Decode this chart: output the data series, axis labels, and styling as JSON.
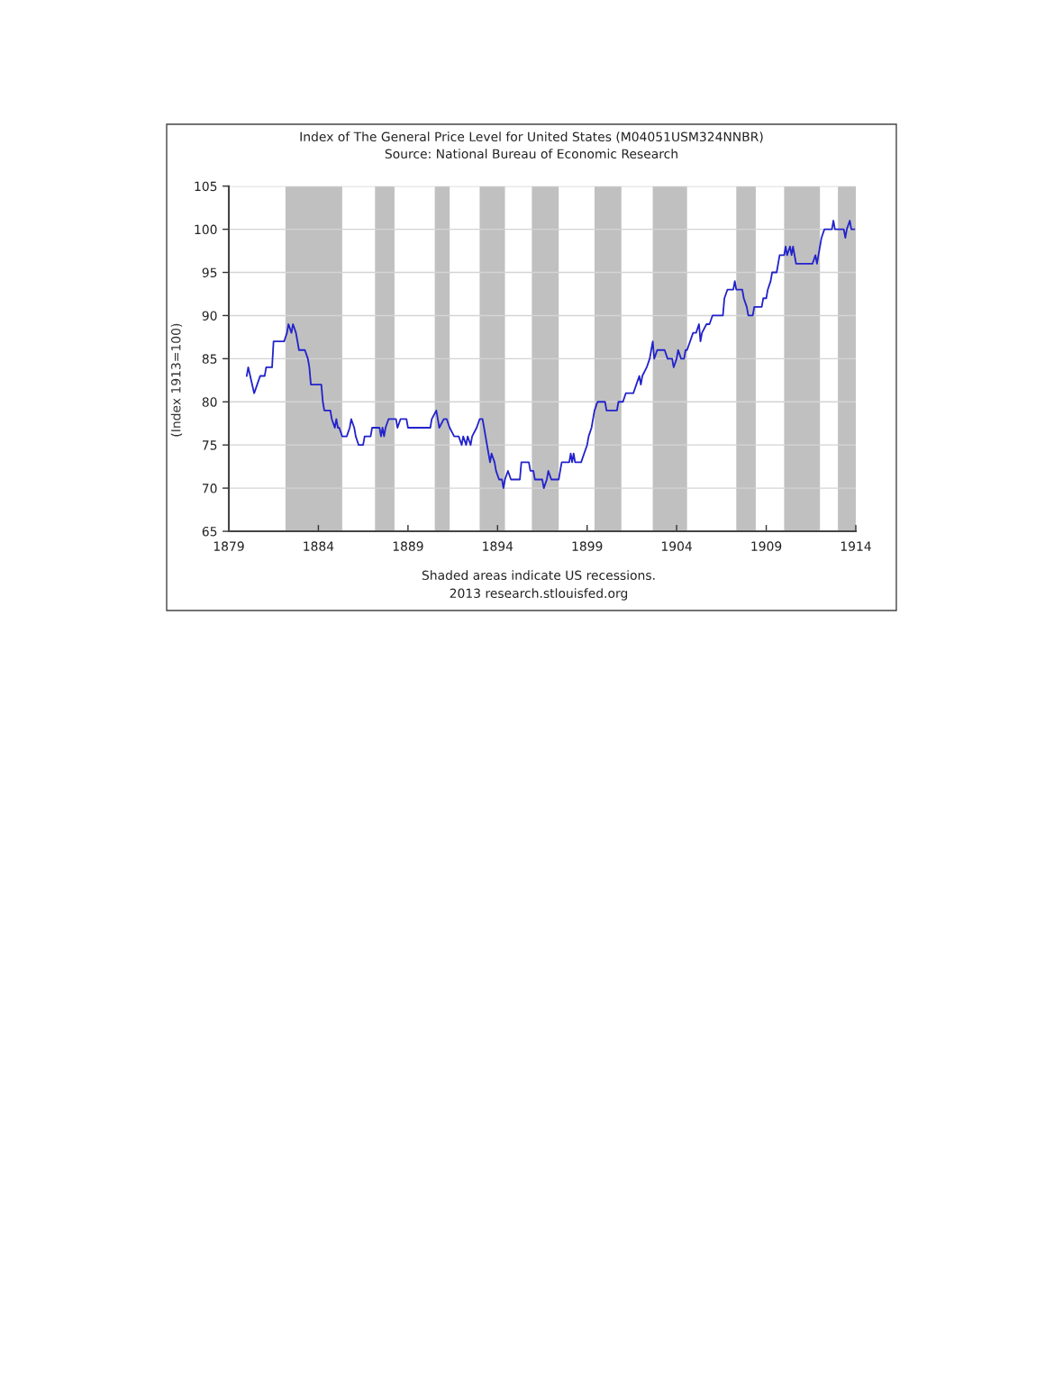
{
  "chart_data": {
    "type": "line",
    "title": "Index of The General Price Level for United States (M04051USM324NNBR)",
    "subtitle": "Source: National Bureau of Economic Research",
    "ylabel": "(Index 1913=100)",
    "annotations": [
      "Shaded areas indicate US recessions.",
      "2013 research.stlouisfed.org"
    ],
    "series": [
      {
        "color": "#2222cc",
        "x": [
          "1880-01",
          "1880-02",
          "1880-06",
          "1880-08",
          "1880-10",
          "1881-01",
          "1881-02",
          "1881-06",
          "1881-07",
          "1882-02",
          "1882-04",
          "1882-05",
          "1882-07",
          "1882-08",
          "1882-10",
          "1882-11",
          "1882-12",
          "1883-04",
          "1883-06",
          "1883-07",
          "1883-08",
          "1884-03",
          "1884-04",
          "1884-05",
          "1884-09",
          "1884-10",
          "1884-12",
          "1885-01",
          "1885-02",
          "1885-03",
          "1885-05",
          "1885-08",
          "1885-10",
          "1885-11",
          "1886-01",
          "1886-02",
          "1886-04",
          "1886-07",
          "1886-08",
          "1886-12",
          "1887-01",
          "1887-06",
          "1887-07",
          "1887-08",
          "1887-09",
          "1887-10",
          "1887-12",
          "1888-05",
          "1888-06",
          "1888-08",
          "1888-12",
          "1889-01",
          "1890-04",
          "1890-05",
          "1890-08",
          "1890-09",
          "1890-10",
          "1891-01",
          "1891-03",
          "1891-05",
          "1891-08",
          "1891-11",
          "1892-01",
          "1892-02",
          "1892-04",
          "1892-05",
          "1892-07",
          "1892-08",
          "1892-11",
          "1893-01",
          "1893-03",
          "1893-04",
          "1893-05",
          "1893-07",
          "1893-08",
          "1893-09",
          "1893-11",
          "1893-12",
          "1894-02",
          "1894-04",
          "1894-05",
          "1894-06",
          "1894-08",
          "1894-10",
          "1895-04",
          "1895-05",
          "1895-10",
          "1895-11",
          "1896-01",
          "1896-02",
          "1896-07",
          "1896-08",
          "1896-10",
          "1896-11",
          "1897-01",
          "1897-06",
          "1897-07",
          "1897-08",
          "1898-01",
          "1898-02",
          "1898-03",
          "1898-04",
          "1898-05",
          "1898-09",
          "1898-11",
          "1899-01",
          "1899-02",
          "1899-04",
          "1899-05",
          "1899-06",
          "1899-08",
          "1900-01",
          "1900-02",
          "1900-05",
          "1900-09",
          "1900-10",
          "1901-01",
          "1901-03",
          "1901-08",
          "1901-10",
          "1901-12",
          "1902-01",
          "1902-02",
          "1902-05",
          "1902-07",
          "1902-08",
          "1902-09",
          "1902-10",
          "1902-12",
          "1903-05",
          "1903-07",
          "1903-10",
          "1903-11",
          "1904-01",
          "1904-02",
          "1904-04",
          "1904-06",
          "1904-07",
          "1904-08",
          "1904-10",
          "1904-12",
          "1905-02",
          "1905-04",
          "1905-05",
          "1905-06",
          "1905-09",
          "1905-11",
          "1906-01",
          "1906-08",
          "1906-09",
          "1906-11",
          "1907-03",
          "1907-04",
          "1907-05",
          "1907-09",
          "1907-10",
          "1907-12",
          "1908-01",
          "1908-04",
          "1908-05",
          "1908-10",
          "1908-11",
          "1909-01",
          "1909-02",
          "1909-04",
          "1909-05",
          "1909-08",
          "1909-09",
          "1909-10",
          "1910-01",
          "1910-02",
          "1910-03",
          "1910-05",
          "1910-06",
          "1910-07",
          "1910-08",
          "1910-09",
          "1911-08",
          "1911-10",
          "1911-11",
          "1911-12",
          "1912-01",
          "1912-02",
          "1912-04",
          "1912-09",
          "1912-10",
          "1912-11",
          "1913-05",
          "1913-06",
          "1913-07",
          "1913-09",
          "1913-10",
          "1913-12"
        ],
        "values": [
          83,
          84,
          81,
          82,
          83,
          83,
          84,
          84,
          87,
          87,
          88,
          89,
          88,
          89,
          88,
          87,
          86,
          86,
          85,
          84,
          82,
          82,
          80,
          79,
          79,
          78,
          77,
          78,
          77,
          77,
          76,
          76,
          77,
          78,
          77,
          76,
          75,
          75,
          76,
          76,
          77,
          77,
          76,
          77,
          76,
          77,
          78,
          78,
          77,
          78,
          78,
          77,
          77,
          78,
          79,
          78,
          77,
          78,
          78,
          77,
          76,
          76,
          75,
          76,
          75,
          76,
          75,
          76,
          77,
          78,
          78,
          77,
          76,
          74,
          73,
          74,
          73,
          72,
          71,
          71,
          70,
          71,
          72,
          71,
          71,
          73,
          73,
          72,
          72,
          71,
          71,
          70,
          71,
          72,
          71,
          71,
          72,
          73,
          73,
          74,
          73,
          74,
          73,
          73,
          74,
          75,
          76,
          77,
          78,
          79,
          80,
          80,
          79,
          79,
          79,
          80,
          80,
          81,
          81,
          82,
          83,
          82,
          83,
          84,
          85,
          86,
          87,
          85,
          86,
          86,
          85,
          85,
          84,
          85,
          86,
          85,
          85,
          86,
          86,
          87,
          88,
          88,
          89,
          87,
          88,
          89,
          89,
          90,
          90,
          92,
          93,
          93,
          94,
          93,
          93,
          92,
          91,
          90,
          90,
          91,
          91,
          92,
          92,
          93,
          94,
          95,
          95,
          96,
          97,
          97,
          98,
          97,
          98,
          97,
          98,
          97,
          96,
          96,
          97,
          96,
          97,
          98,
          99,
          100,
          100,
          101,
          100,
          100,
          99,
          100,
          101,
          100,
          100
        ]
      }
    ],
    "xlim": [
      "1879",
      "1914"
    ],
    "xticks": [
      "1879",
      "1884",
      "1889",
      "1894",
      "1899",
      "1904",
      "1909",
      "1914"
    ],
    "ylim": [
      65,
      105
    ],
    "yticks": [
      65,
      70,
      75,
      80,
      85,
      90,
      95,
      100,
      105
    ],
    "grid": "y",
    "line_style": "solid",
    "bands": [
      {
        "axis": "x",
        "from": "1882-03",
        "to": "1885-05",
        "color": "#c0c0c0"
      },
      {
        "axis": "x",
        "from": "1887-03",
        "to": "1888-04",
        "color": "#c0c0c0"
      },
      {
        "axis": "x",
        "from": "1890-07",
        "to": "1891-05",
        "color": "#c0c0c0"
      },
      {
        "axis": "x",
        "from": "1893-01",
        "to": "1894-06",
        "color": "#c0c0c0"
      },
      {
        "axis": "x",
        "from": "1895-12",
        "to": "1897-06",
        "color": "#c0c0c0"
      },
      {
        "axis": "x",
        "from": "1899-06",
        "to": "1900-12",
        "color": "#c0c0c0"
      },
      {
        "axis": "x",
        "from": "1902-09",
        "to": "1904-08",
        "color": "#c0c0c0"
      },
      {
        "axis": "x",
        "from": "1907-05",
        "to": "1908-06",
        "color": "#c0c0c0"
      },
      {
        "axis": "x",
        "from": "1910-01",
        "to": "1912-01",
        "color": "#c0c0c0"
      },
      {
        "axis": "x",
        "from": "1913-01",
        "to": "1914",
        "color": "#c0c0c0"
      }
    ]
  }
}
